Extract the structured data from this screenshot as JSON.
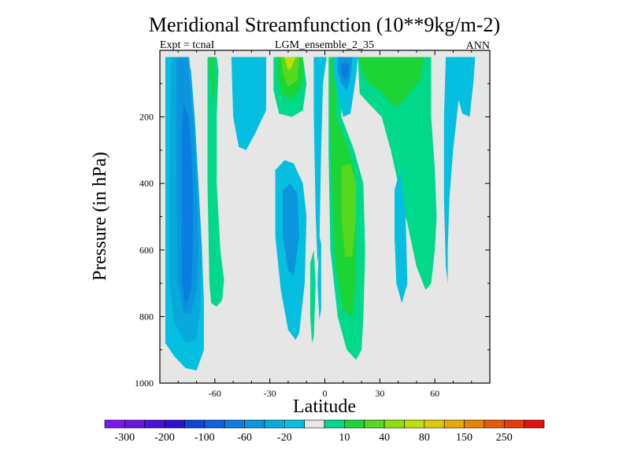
{
  "chart_data": {
    "type": "contour",
    "title": "Meridional Streamfunction (10**9kg/m-2)",
    "subtitle_left": "Expt = tcnaI",
    "subtitle_center": "LGM_ensemble_2_35",
    "subtitle_right": "ANN",
    "xlabel": "Latitude",
    "ylabel": "Pressure (in hPa)",
    "xlim": [
      -90,
      90
    ],
    "ylim": [
      1000,
      0
    ],
    "x_ticks": [
      -60,
      -30,
      0,
      30,
      60
    ],
    "x_tick_labels": [
      "-60",
      "-30",
      "0",
      "30",
      "60"
    ],
    "y_ticks": [
      200,
      400,
      600,
      800,
      1000
    ],
    "y_tick_labels": [
      "200",
      "400",
      "600",
      "800",
      "1000"
    ],
    "background_color": "#e6e6e6",
    "colorbar": {
      "colors": [
        "#7d16e8",
        "#6a14dc",
        "#4a12d8",
        "#2d10cf",
        "#0f44d6",
        "#0a62dd",
        "#0a7ee0",
        "#0b95dc",
        "#08aade",
        "#05bfe0",
        "#e6e6e6",
        "#00d98a",
        "#1cd435",
        "#55d81e",
        "#8ee00c",
        "#bede05",
        "#dcc804",
        "#e6a804",
        "#e68204",
        "#e65a06",
        "#e63a0a",
        "#e60f0f"
      ],
      "labels": [
        "-300",
        "-200",
        "-100",
        "-60",
        "-20",
        "10",
        "40",
        "80",
        "150",
        "250"
      ]
    },
    "regions": [
      {
        "name": "sh-cell-level1",
        "value": -20,
        "color": "#05bfe0",
        "points": [
          [
            -87,
            20
          ],
          [
            -80,
            20
          ],
          [
            -76,
            20
          ],
          [
            -73,
            60
          ],
          [
            -71,
            200
          ],
          [
            -69,
            400
          ],
          [
            -67,
            600
          ],
          [
            -66,
            750
          ],
          [
            -66,
            900
          ],
          [
            -70,
            962
          ],
          [
            -76,
            955
          ],
          [
            -82,
            920
          ],
          [
            -87,
            880
          ]
        ]
      },
      {
        "name": "sh-cell-level2",
        "value": -40,
        "color": "#08aade",
        "points": [
          [
            -84,
            20
          ],
          [
            -74,
            20
          ],
          [
            -71,
            200
          ],
          [
            -69,
            400
          ],
          [
            -67,
            600
          ],
          [
            -68,
            780
          ],
          [
            -70,
            870
          ],
          [
            -76,
            880
          ],
          [
            -82,
            820
          ],
          [
            -85,
            700
          ],
          [
            -85,
            400
          ]
        ]
      },
      {
        "name": "sh-cell-level3",
        "value": -60,
        "color": "#0b95dc",
        "points": [
          [
            -81,
            20
          ],
          [
            -75,
            20
          ],
          [
            -72,
            200
          ],
          [
            -70,
            400
          ],
          [
            -69,
            600
          ],
          [
            -70,
            720
          ],
          [
            -73,
            790
          ],
          [
            -77,
            790
          ],
          [
            -80,
            700
          ],
          [
            -81,
            450
          ],
          [
            -81,
            200
          ]
        ]
      },
      {
        "name": "sh-cell-level4",
        "value": -100,
        "color": "#0a7ee0",
        "points": [
          [
            -77,
            160
          ],
          [
            -74,
            200
          ],
          [
            -72,
            400
          ],
          [
            -72,
            600
          ],
          [
            -73,
            720
          ],
          [
            -76,
            770
          ],
          [
            -78,
            690
          ],
          [
            -78,
            400
          ],
          [
            -78,
            240
          ]
        ]
      },
      {
        "name": "polar-positive",
        "value": 10,
        "color": "#00d98a",
        "points": [
          [
            -64,
            20
          ],
          [
            -59,
            20
          ],
          [
            -58,
            60
          ],
          [
            -59,
            200
          ],
          [
            -59,
            400
          ],
          [
            -57,
            600
          ],
          [
            -55,
            690
          ],
          [
            -56,
            750
          ],
          [
            -59,
            770
          ],
          [
            -62,
            760
          ],
          [
            -63,
            700
          ],
          [
            -64,
            400
          ],
          [
            -64,
            200
          ]
        ]
      },
      {
        "name": "polar-positive-core",
        "value": 40,
        "color": "#1cd435",
        "points": [
          [
            -63,
            20
          ],
          [
            -61,
            20
          ],
          [
            -60,
            100
          ],
          [
            -61,
            160
          ],
          [
            -62,
            100
          ]
        ]
      },
      {
        "name": "midlat-negative",
        "value": -20,
        "color": "#05bfe0",
        "points": [
          [
            -51,
            20
          ],
          [
            -32,
            20
          ],
          [
            -32,
            180
          ],
          [
            -38,
            250
          ],
          [
            -43,
            300
          ],
          [
            -47,
            290
          ],
          [
            -50,
            200
          ]
        ]
      },
      {
        "name": "upper-positive",
        "value": 10,
        "color": "#00d98a",
        "points": [
          [
            -28,
            20
          ],
          [
            -20,
            20
          ],
          [
            -12,
            20
          ],
          [
            -10,
            100
          ],
          [
            -12,
            180
          ],
          [
            -18,
            200
          ],
          [
            -25,
            190
          ],
          [
            -28,
            120
          ]
        ]
      },
      {
        "name": "upper-positive-l2",
        "value": 40,
        "color": "#1cd435",
        "points": [
          [
            -26,
            20
          ],
          [
            -12,
            20
          ],
          [
            -12,
            100
          ],
          [
            -18,
            150
          ],
          [
            -24,
            130
          ],
          [
            -26,
            60
          ]
        ]
      },
      {
        "name": "upper-positive-l3",
        "value": 80,
        "color": "#55d81e",
        "points": [
          [
            -24,
            20
          ],
          [
            -14,
            20
          ],
          [
            -15,
            90
          ],
          [
            -20,
            110
          ],
          [
            -23,
            70
          ]
        ]
      },
      {
        "name": "upper-positive-l4",
        "value": 150,
        "color": "#bede05",
        "points": [
          [
            -22,
            20
          ],
          [
            -16,
            20
          ],
          [
            -18,
            50
          ],
          [
            -20,
            60
          ]
        ]
      },
      {
        "name": "lower-negative",
        "value": -20,
        "color": "#05bfe0",
        "points": [
          [
            -27,
            360
          ],
          [
            -22,
            330
          ],
          [
            -17,
            340
          ],
          [
            -12,
            400
          ],
          [
            -10,
            500
          ],
          [
            -11,
            700
          ],
          [
            -14,
            850
          ],
          [
            -16,
            870
          ],
          [
            -20,
            840
          ],
          [
            -24,
            720
          ],
          [
            -27,
            560
          ]
        ]
      },
      {
        "name": "lower-negative-l2",
        "value": -60,
        "color": "#0b95dc",
        "points": [
          [
            -23,
            420
          ],
          [
            -19,
            400
          ],
          [
            -15,
            430
          ],
          [
            -14,
            560
          ],
          [
            -17,
            680
          ],
          [
            -20,
            660
          ],
          [
            -23,
            560
          ]
        ]
      },
      {
        "name": "thin-positive-1",
        "value": 10,
        "color": "#00d98a",
        "points": [
          [
            -8,
            640
          ],
          [
            -6,
            600
          ],
          [
            -5,
            700
          ],
          [
            -6,
            860
          ],
          [
            -7,
            880
          ],
          [
            -8,
            800
          ]
        ]
      },
      {
        "name": "thin-negative-1",
        "value": -20,
        "color": "#05bfe0",
        "points": [
          [
            -3,
            560
          ],
          [
            -2,
            580
          ],
          [
            -2,
            780
          ],
          [
            -3,
            810
          ],
          [
            -4,
            700
          ]
        ]
      },
      {
        "name": "equatorial-negative",
        "value": -20,
        "color": "#05bfe0",
        "points": [
          [
            -6,
            20
          ],
          [
            1,
            20
          ],
          [
            -1,
            100
          ],
          [
            -2,
            300
          ],
          [
            -3,
            600
          ],
          [
            -4,
            640
          ],
          [
            -5,
            500
          ],
          [
            -6,
            200
          ]
        ]
      },
      {
        "name": "nh-cell-level1",
        "value": 10,
        "color": "#00d98a",
        "points": [
          [
            2,
            20
          ],
          [
            12,
            20
          ],
          [
            9,
            100
          ],
          [
            9,
            200
          ],
          [
            16,
            300
          ],
          [
            21,
            400
          ],
          [
            22,
            600
          ],
          [
            21,
            800
          ],
          [
            20,
            900
          ],
          [
            17,
            930
          ],
          [
            12,
            900
          ],
          [
            7,
            800
          ],
          [
            3,
            600
          ],
          [
            2,
            300
          ]
        ]
      },
      {
        "name": "nh-cell-level2",
        "value": 40,
        "color": "#1cd435",
        "points": [
          [
            3,
            20
          ],
          [
            8,
            20
          ],
          [
            6,
            100
          ],
          [
            6,
            200
          ],
          [
            12,
            280
          ],
          [
            16,
            360
          ],
          [
            17,
            500
          ],
          [
            17,
            700
          ],
          [
            15,
            800
          ],
          [
            10,
            780
          ],
          [
            6,
            650
          ],
          [
            4,
            450
          ],
          [
            3,
            200
          ]
        ]
      },
      {
        "name": "nh-cell-level3",
        "value": 80,
        "color": "#55d81e",
        "points": [
          [
            9,
            350
          ],
          [
            14,
            340
          ],
          [
            17,
            400
          ],
          [
            17,
            500
          ],
          [
            15,
            620
          ],
          [
            11,
            620
          ],
          [
            9,
            500
          ]
        ]
      },
      {
        "name": "nh-upper-negative",
        "value": -20,
        "color": "#05bfe0",
        "points": [
          [
            5,
            20
          ],
          [
            18,
            20
          ],
          [
            17,
            80
          ],
          [
            14,
            190
          ],
          [
            10,
            200
          ],
          [
            8,
            150
          ],
          [
            5,
            80
          ]
        ]
      },
      {
        "name": "nh-upper-negative-l2",
        "value": -60,
        "color": "#0b95dc",
        "points": [
          [
            7,
            20
          ],
          [
            15,
            20
          ],
          [
            14,
            80
          ],
          [
            12,
            120
          ],
          [
            9,
            100
          ],
          [
            7,
            60
          ]
        ]
      },
      {
        "name": "nh-upper-negative-l3",
        "value": -100,
        "color": "#0a7ee0",
        "points": [
          [
            9,
            40
          ],
          [
            13,
            40
          ],
          [
            13,
            80
          ],
          [
            11,
            90
          ],
          [
            9,
            70
          ]
        ]
      },
      {
        "name": "nh-midlat-positive",
        "value": 10,
        "color": "#00d98a",
        "points": [
          [
            18,
            20
          ],
          [
            58,
            20
          ],
          [
            58,
            200
          ],
          [
            60,
            360
          ],
          [
            61,
            500
          ],
          [
            60,
            600
          ],
          [
            58,
            700
          ],
          [
            55,
            720
          ],
          [
            50,
            650
          ],
          [
            45,
            520
          ],
          [
            40,
            400
          ],
          [
            36,
            300
          ],
          [
            31,
            200
          ],
          [
            24,
            160
          ],
          [
            19,
            130
          ]
        ]
      },
      {
        "name": "nh-midlat-positive-l2",
        "value": 40,
        "color": "#1cd435",
        "points": [
          [
            19,
            20
          ],
          [
            54,
            20
          ],
          [
            52,
            90
          ],
          [
            46,
            130
          ],
          [
            40,
            170
          ],
          [
            36,
            160
          ],
          [
            30,
            120
          ],
          [
            24,
            100
          ],
          [
            20,
            60
          ]
        ]
      },
      {
        "name": "nh-deep-negative",
        "value": -20,
        "color": "#05bfe0",
        "points": [
          [
            38,
            420
          ],
          [
            41,
            360
          ],
          [
            44,
            480
          ],
          [
            45,
            700
          ],
          [
            42,
            760
          ],
          [
            39,
            700
          ],
          [
            38,
            560
          ]
        ]
      },
      {
        "name": "nh-polar-negative",
        "value": -20,
        "color": "#05bfe0",
        "points": [
          [
            66,
            20
          ],
          [
            82,
            20
          ],
          [
            81,
            100
          ],
          [
            79,
            200
          ],
          [
            75,
            190
          ],
          [
            73,
            150
          ],
          [
            70,
            300
          ],
          [
            68,
            440
          ],
          [
            67,
            600
          ],
          [
            67,
            700
          ],
          [
            66,
            650
          ],
          [
            65,
            450
          ],
          [
            65,
            200
          ]
        ]
      },
      {
        "name": "nh-polar-negative-l2",
        "value": -20,
        "color": "#05bfe0",
        "points": [
          [
            70,
            20
          ],
          [
            73,
            20
          ],
          [
            72,
            80
          ],
          [
            71,
            40
          ]
        ]
      }
    ]
  }
}
